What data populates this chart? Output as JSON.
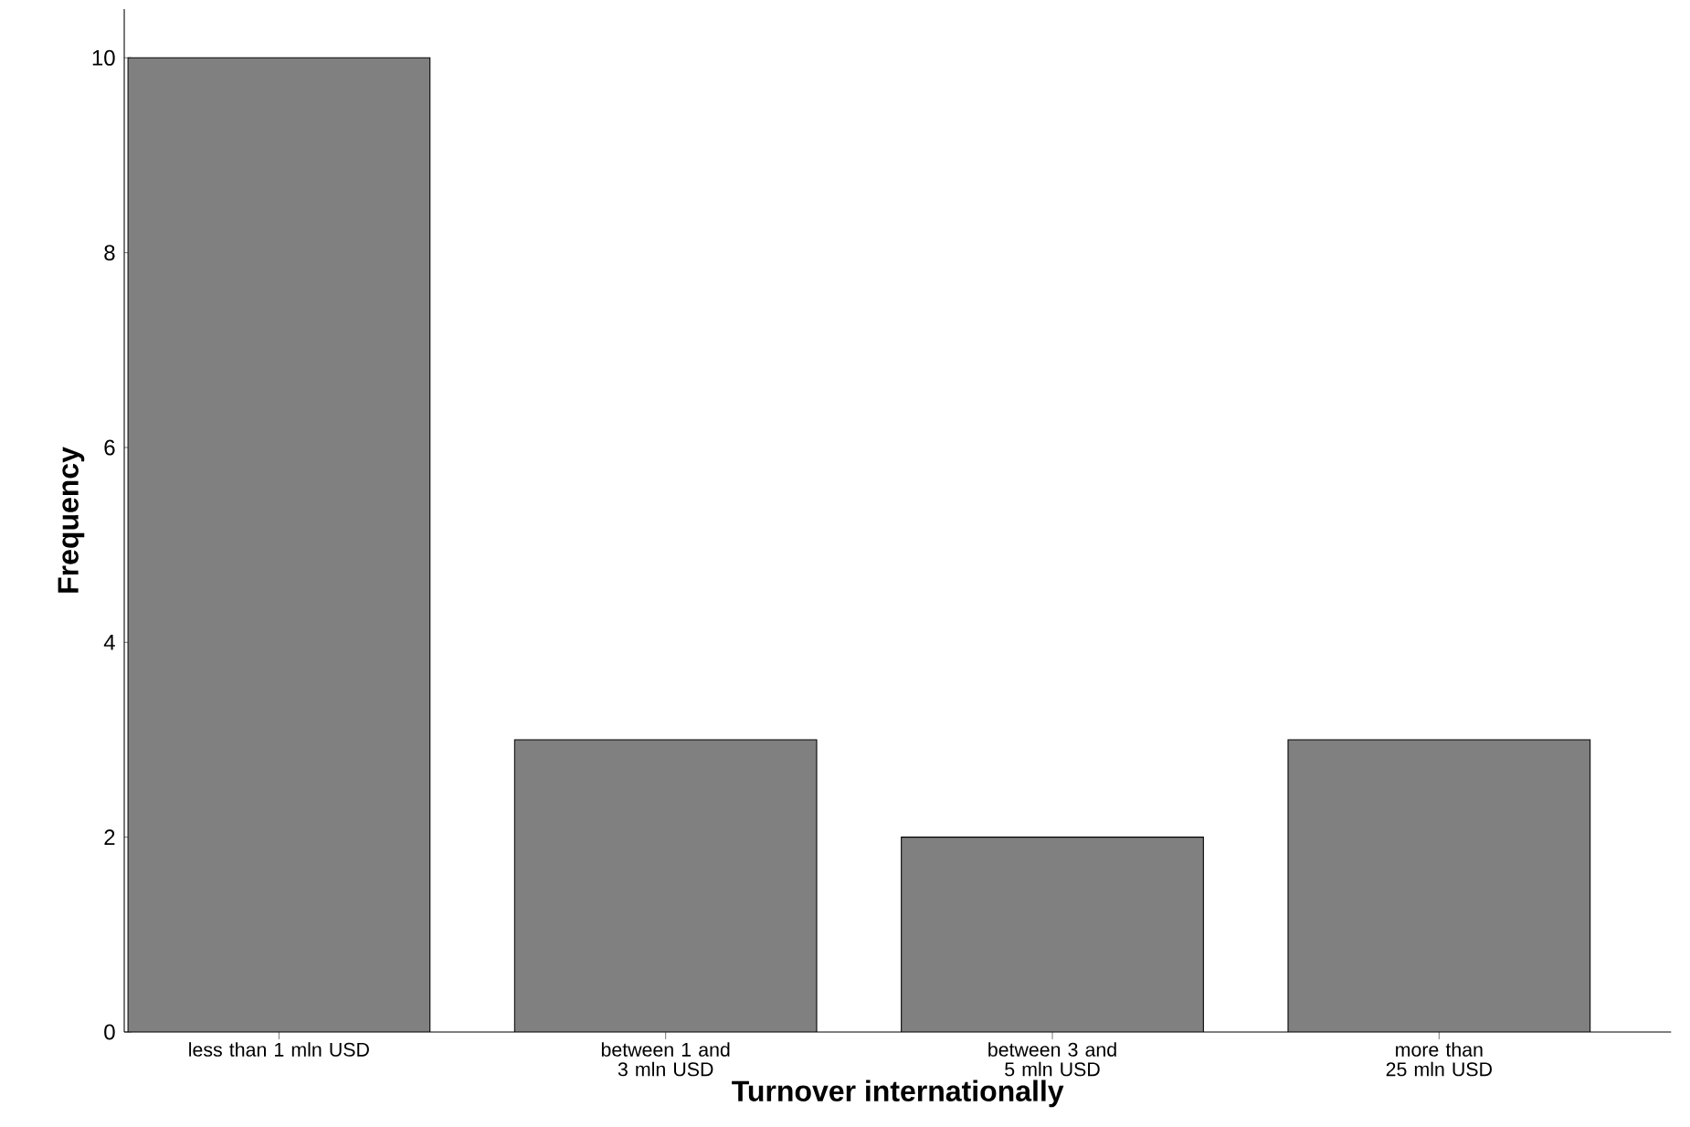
{
  "chart_data": {
    "type": "bar",
    "xlabel": "Turnover internationally",
    "ylabel": "Frequency",
    "categories": [
      "less than 1 mln USD",
      "between 1 and 3 mln USD",
      "between 3 and 5 mln USD",
      "more than 25 mln USD"
    ],
    "values": [
      10,
      3,
      2,
      3
    ],
    "color": "#808080",
    "ylim": [
      0,
      10.5
    ],
    "yticks": [
      0,
      2,
      4,
      6,
      8,
      10
    ],
    "grid": false
  }
}
